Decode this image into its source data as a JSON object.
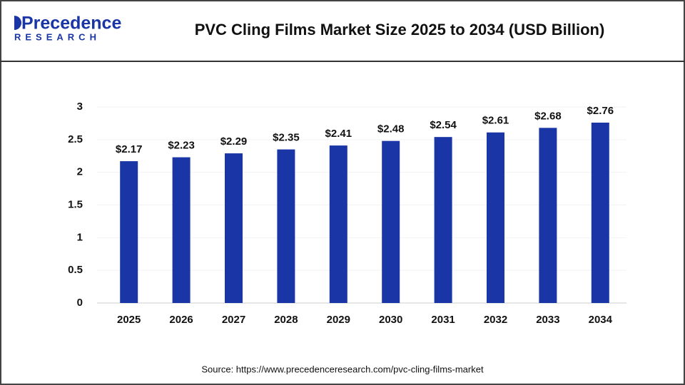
{
  "logo": {
    "name": "Precedence",
    "tagline": "RESEARCH"
  },
  "source": "Source: https://www.precedenceresearch.com/pvc-cling-films-market",
  "chart_data": {
    "type": "bar",
    "title": "PVC Cling Films Market Size 2025 to 2034 (USD Billion)",
    "categories": [
      "2025",
      "2026",
      "2027",
      "2028",
      "2029",
      "2030",
      "2031",
      "2032",
      "2033",
      "2034"
    ],
    "values": [
      2.17,
      2.23,
      2.29,
      2.35,
      2.41,
      2.48,
      2.54,
      2.61,
      2.68,
      2.76
    ],
    "value_labels": [
      "$2.17",
      "$2.23",
      "$2.29",
      "$2.35",
      "$2.41",
      "$2.48",
      "$2.54",
      "$2.61",
      "$2.68",
      "$2.76"
    ],
    "color": "#1a36a6",
    "ylim": [
      0,
      3
    ],
    "yticks": [
      0,
      0.5,
      1,
      1.5,
      2,
      2.5,
      3
    ],
    "grid": true
  }
}
